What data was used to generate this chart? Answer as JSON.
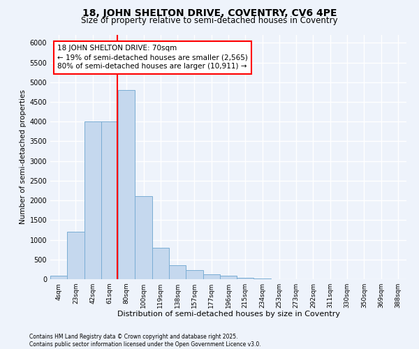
{
  "title_line1": "18, JOHN SHELTON DRIVE, COVENTRY, CV6 4PE",
  "title_line2": "Size of property relative to semi-detached houses in Coventry",
  "xlabel": "Distribution of semi-detached houses by size in Coventry",
  "ylabel": "Number of semi-detached properties",
  "footnote": "Contains HM Land Registry data © Crown copyright and database right 2025.\nContains public sector information licensed under the Open Government Licence v3.0.",
  "bar_labels": [
    "4sqm",
    "23sqm",
    "42sqm",
    "61sqm",
    "80sqm",
    "100sqm",
    "119sqm",
    "138sqm",
    "157sqm",
    "177sqm",
    "196sqm",
    "215sqm",
    "234sqm",
    "253sqm",
    "273sqm",
    "292sqm",
    "311sqm",
    "330sqm",
    "350sqm",
    "369sqm",
    "388sqm"
  ],
  "bar_values": [
    80,
    1200,
    4000,
    4000,
    4800,
    2100,
    800,
    350,
    230,
    130,
    80,
    40,
    20,
    5,
    0,
    0,
    0,
    0,
    0,
    0,
    0
  ],
  "bar_color": "#c5d8ee",
  "bar_edge_color": "#7aadd4",
  "vline_color": "red",
  "annotation_text": "18 JOHN SHELTON DRIVE: 70sqm\n← 19% of semi-detached houses are smaller (2,565)\n80% of semi-detached houses are larger (10,911) →",
  "ylim": [
    0,
    6200
  ],
  "yticks": [
    0,
    500,
    1000,
    1500,
    2000,
    2500,
    3000,
    3500,
    4000,
    4500,
    5000,
    5500,
    6000
  ],
  "bg_color": "#eef3fb",
  "grid_color": "white",
  "title1_fontsize": 10,
  "title2_fontsize": 8.5,
  "annot_fontsize": 7.5,
  "ylabel_fontsize": 7.5,
  "xlabel_fontsize": 8,
  "footnote_fontsize": 5.5
}
